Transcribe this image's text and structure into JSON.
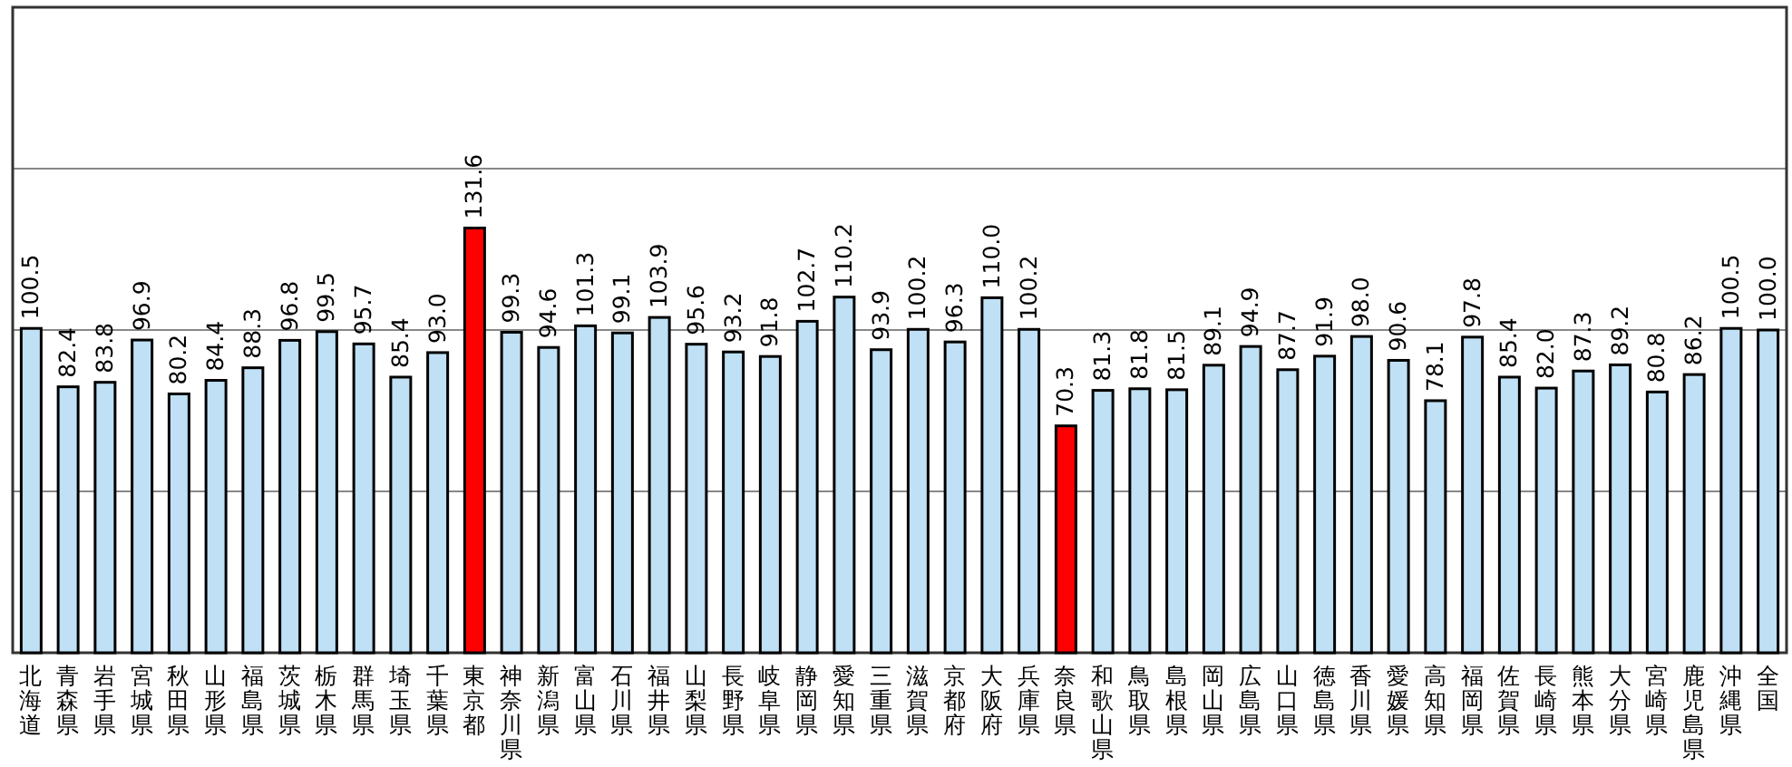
{
  "chart_data": {
    "type": "bar",
    "categories": [
      "北海道",
      "青森県",
      "岩手県",
      "宮城県",
      "秋田県",
      "山形県",
      "福島県",
      "茨城県",
      "栃木県",
      "群馬県",
      "埼玉県",
      "千葉県",
      "東京都",
      "神奈川県",
      "新潟県",
      "富山県",
      "石川県",
      "福井県",
      "山梨県",
      "長野県",
      "岐阜県",
      "静岡県",
      "愛知県",
      "三重県",
      "滋賀県",
      "京都府",
      "大阪府",
      "兵庫県",
      "奈良県",
      "和歌山県",
      "鳥取県",
      "島根県",
      "岡山県",
      "広島県",
      "山口県",
      "徳島県",
      "香川県",
      "愛媛県",
      "高知県",
      "福岡県",
      "佐賀県",
      "長崎県",
      "熊本県",
      "大分県",
      "宮崎県",
      "鹿児島県",
      "沖縄県",
      "全国"
    ],
    "values": [
      100.5,
      82.4,
      83.8,
      96.9,
      80.2,
      84.4,
      88.3,
      96.8,
      99.5,
      95.7,
      85.4,
      93.0,
      131.6,
      99.3,
      94.6,
      101.3,
      99.1,
      103.9,
      95.6,
      93.2,
      91.8,
      102.7,
      110.2,
      93.9,
      100.2,
      96.3,
      110.0,
      100.2,
      70.3,
      81.3,
      81.8,
      81.5,
      89.1,
      94.9,
      87.7,
      91.9,
      98.0,
      90.6,
      78.1,
      97.8,
      85.4,
      82.0,
      87.3,
      89.2,
      80.8,
      86.2,
      100.5,
      100.0
    ],
    "colors": [
      "#bfe0f5",
      "#bfe0f5",
      "#bfe0f5",
      "#bfe0f5",
      "#bfe0f5",
      "#bfe0f5",
      "#bfe0f5",
      "#bfe0f5",
      "#bfe0f5",
      "#bfe0f5",
      "#bfe0f5",
      "#bfe0f5",
      "#ff0000",
      "#bfe0f5",
      "#bfe0f5",
      "#bfe0f5",
      "#bfe0f5",
      "#bfe0f5",
      "#bfe0f5",
      "#bfe0f5",
      "#bfe0f5",
      "#bfe0f5",
      "#bfe0f5",
      "#bfe0f5",
      "#bfe0f5",
      "#bfe0f5",
      "#bfe0f5",
      "#bfe0f5",
      "#ff0000",
      "#bfe0f5",
      "#bfe0f5",
      "#bfe0f5",
      "#bfe0f5",
      "#bfe0f5",
      "#bfe0f5",
      "#bfe0f5",
      "#bfe0f5",
      "#bfe0f5",
      "#bfe0f5",
      "#bfe0f5",
      "#bfe0f5",
      "#bfe0f5",
      "#bfe0f5",
      "#bfe0f5",
      "#bfe0f5",
      "#bfe0f5",
      "#bfe0f5",
      "#bfe0f5"
    ],
    "ylim": [
      0,
      200
    ],
    "yticks": [
      {
        "value": 50,
        "label": null
      },
      {
        "value": 100,
        "label": null
      },
      {
        "value": 150,
        "label": null
      }
    ],
    "value_labels": [
      "100.5",
      "82.4",
      "83.8",
      "96.9",
      "80.2",
      "84.4",
      "88.3",
      "96.8",
      "99.5",
      "95.7",
      "85.4",
      "93.0",
      "131.6",
      "99.3",
      "94.6",
      "101.3",
      "99.1",
      "103.9",
      "95.6",
      "93.2",
      "91.8",
      "102.7",
      "110.2",
      "93.9",
      "100.2",
      "96.3",
      "110.0",
      "100.2",
      "70.3",
      "81.3",
      "81.8",
      "81.5",
      "89.1",
      "94.9",
      "87.7",
      "91.9",
      "98.0",
      "90.6",
      "78.1",
      "97.8",
      "85.4",
      "82.0",
      "87.3",
      "89.2",
      "80.8",
      "86.2",
      "100.5",
      "100.0"
    ],
    "grid": "y",
    "tick_labels": "x"
  }
}
